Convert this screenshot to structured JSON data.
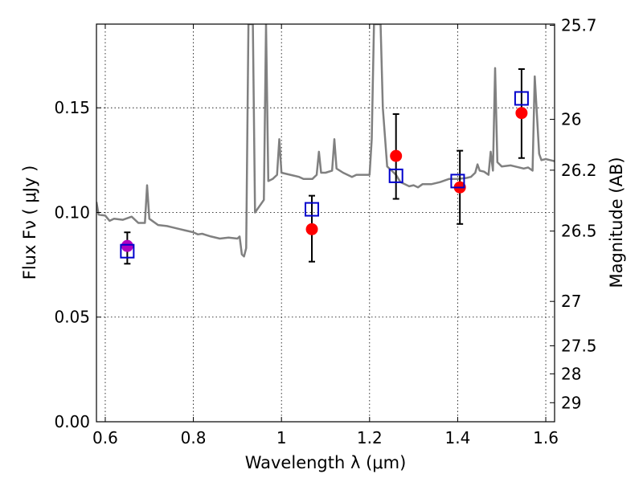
{
  "chart_data": {
    "type": "scatter",
    "title": "",
    "xlabel": "Wavelength  λ (μm)",
    "ylabel": "Flux  Fν ( μJy )",
    "ylabel_right": "Magnitude (AB)",
    "xlim": [
      0.58,
      1.62
    ],
    "ylim": [
      0.0,
      0.19
    ],
    "grid": true,
    "x_ticks": [
      0.6,
      0.8,
      1.0,
      1.2,
      1.4,
      1.6
    ],
    "x_tick_labels": [
      "0.6",
      "0.8",
      "1",
      "1.2",
      "1.4",
      "1.6"
    ],
    "y_ticks": [
      0.0,
      0.05,
      0.1,
      0.15
    ],
    "y_tick_labels": [
      "0.00",
      "0.05",
      "0.10",
      "0.15"
    ],
    "right_ticks": [
      {
        "label": "25.7",
        "flux": 0.1894
      },
      {
        "label": "26",
        "flux": 0.1445
      },
      {
        "label": "26.2",
        "flux": 0.1202
      },
      {
        "label": "26.5",
        "flux": 0.0911
      },
      {
        "label": "27",
        "flux": 0.0575
      },
      {
        "label": "27.5",
        "flux": 0.0363
      },
      {
        "label": "28",
        "flux": 0.0229
      },
      {
        "label": "29",
        "flux": 0.0091
      }
    ],
    "colors": {
      "model": "#808080",
      "observed": "#ff0000",
      "observed_first": "#b000c0",
      "synthetic": "#0000cc",
      "errorbar": "#000000"
    },
    "series": [
      {
        "kind": "model_spectrum",
        "points": [
          [
            0.58,
            0.105
          ],
          [
            0.585,
            0.099
          ],
          [
            0.6,
            0.0985
          ],
          [
            0.61,
            0.096
          ],
          [
            0.62,
            0.097
          ],
          [
            0.64,
            0.0965
          ],
          [
            0.66,
            0.098
          ],
          [
            0.675,
            0.095
          ],
          [
            0.69,
            0.095
          ],
          [
            0.695,
            0.113
          ],
          [
            0.7,
            0.097
          ],
          [
            0.72,
            0.094
          ],
          [
            0.74,
            0.0935
          ],
          [
            0.75,
            0.093
          ],
          [
            0.77,
            0.092
          ],
          [
            0.78,
            0.0915
          ],
          [
            0.79,
            0.091
          ],
          [
            0.8,
            0.0905
          ],
          [
            0.81,
            0.0895
          ],
          [
            0.82,
            0.0898
          ],
          [
            0.84,
            0.0885
          ],
          [
            0.86,
            0.0875
          ],
          [
            0.88,
            0.088
          ],
          [
            0.9,
            0.0875
          ],
          [
            0.905,
            0.0885
          ],
          [
            0.91,
            0.08
          ],
          [
            0.915,
            0.079
          ],
          [
            0.92,
            0.083
          ],
          [
            0.925,
            0.19
          ],
          [
            0.935,
            0.19
          ],
          [
            0.94,
            0.1
          ],
          [
            0.95,
            0.103
          ],
          [
            0.96,
            0.106
          ],
          [
            0.965,
            0.19
          ],
          [
            0.97,
            0.115
          ],
          [
            0.98,
            0.116
          ],
          [
            0.99,
            0.118
          ],
          [
            0.995,
            0.135
          ],
          [
            1.0,
            0.119
          ],
          [
            1.02,
            0.118
          ],
          [
            1.04,
            0.117
          ],
          [
            1.05,
            0.116
          ],
          [
            1.07,
            0.116
          ],
          [
            1.08,
            0.118
          ],
          [
            1.085,
            0.129
          ],
          [
            1.09,
            0.119
          ],
          [
            1.1,
            0.119
          ],
          [
            1.115,
            0.12
          ],
          [
            1.12,
            0.135
          ],
          [
            1.125,
            0.121
          ],
          [
            1.14,
            0.119
          ],
          [
            1.16,
            0.117
          ],
          [
            1.17,
            0.118
          ],
          [
            1.19,
            0.118
          ],
          [
            1.2,
            0.118
          ],
          [
            1.205,
            0.135
          ],
          [
            1.21,
            0.19
          ],
          [
            1.225,
            0.19
          ],
          [
            1.23,
            0.15
          ],
          [
            1.24,
            0.122
          ],
          [
            1.25,
            0.12
          ],
          [
            1.26,
            0.118
          ],
          [
            1.27,
            0.1145
          ],
          [
            1.28,
            0.1135
          ],
          [
            1.29,
            0.1125
          ],
          [
            1.3,
            0.113
          ],
          [
            1.31,
            0.112
          ],
          [
            1.32,
            0.1135
          ],
          [
            1.34,
            0.1135
          ],
          [
            1.36,
            0.1145
          ],
          [
            1.38,
            0.116
          ],
          [
            1.4,
            0.116
          ],
          [
            1.42,
            0.1165
          ],
          [
            1.43,
            0.117
          ],
          [
            1.44,
            0.119
          ],
          [
            1.445,
            0.123
          ],
          [
            1.45,
            0.12
          ],
          [
            1.46,
            0.1195
          ],
          [
            1.47,
            0.118
          ],
          [
            1.475,
            0.129
          ],
          [
            1.48,
            0.12
          ],
          [
            1.485,
            0.169
          ],
          [
            1.49,
            0.124
          ],
          [
            1.5,
            0.122
          ],
          [
            1.52,
            0.1225
          ],
          [
            1.53,
            0.122
          ],
          [
            1.55,
            0.121
          ],
          [
            1.56,
            0.1215
          ],
          [
            1.57,
            0.12
          ],
          [
            1.575,
            0.165
          ],
          [
            1.585,
            0.128
          ],
          [
            1.59,
            0.125
          ],
          [
            1.6,
            0.1255
          ],
          [
            1.61,
            0.125
          ],
          [
            1.62,
            0.1245
          ]
        ]
      },
      {
        "kind": "observed",
        "points": [
          {
            "x": 0.65,
            "y": 0.084,
            "yerr_low": 0.0755,
            "yerr_high": 0.0905
          },
          {
            "x": 1.069,
            "y": 0.092,
            "yerr_low": 0.0765,
            "yerr_high": 0.108
          },
          {
            "x": 1.26,
            "y": 0.127,
            "yerr_low": 0.1065,
            "yerr_high": 0.147
          },
          {
            "x": 1.405,
            "y": 0.112,
            "yerr_low": 0.0945,
            "yerr_high": 0.1295
          },
          {
            "x": 1.545,
            "y": 0.1475,
            "yerr_low": 0.126,
            "yerr_high": 0.1685
          }
        ]
      },
      {
        "kind": "synthetic",
        "points": [
          {
            "x": 0.65,
            "y": 0.0815
          },
          {
            "x": 1.069,
            "y": 0.1015
          },
          {
            "x": 1.26,
            "y": 0.1175
          },
          {
            "x": 1.4,
            "y": 0.115
          },
          {
            "x": 1.545,
            "y": 0.1545
          }
        ]
      }
    ]
  }
}
